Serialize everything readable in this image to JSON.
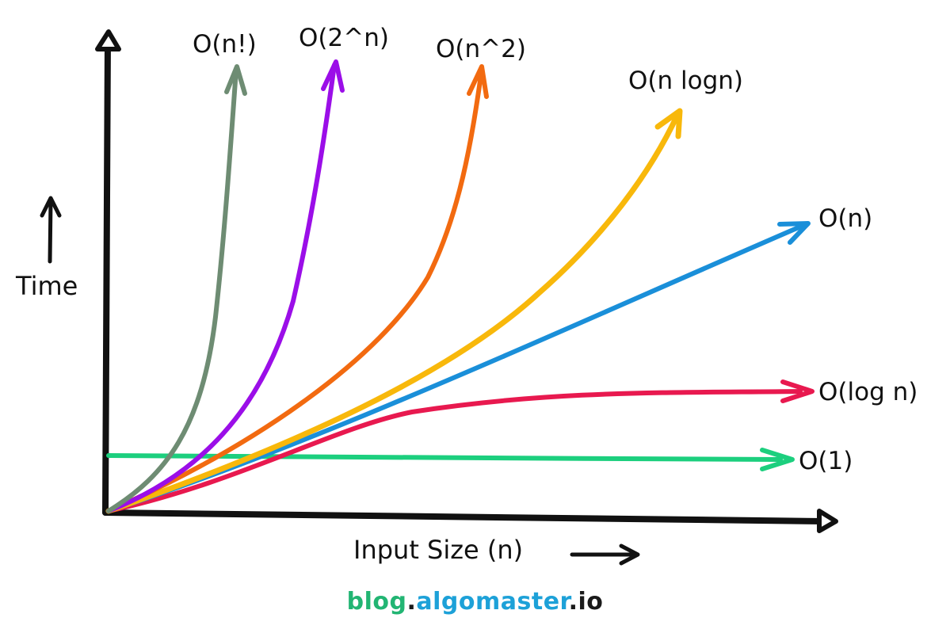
{
  "chart_data": {
    "type": "line",
    "xlabel": "Input Size (n)",
    "ylabel": "Time",
    "grid": false,
    "series": [
      {
        "name": "O(n!)",
        "color": "#6e8c73"
      },
      {
        "name": "O(2^n)",
        "color": "#9b0ee8"
      },
      {
        "name": "O(n^2)",
        "color": "#f26a10"
      },
      {
        "name": "O(n logn)",
        "color": "#f8b80b"
      },
      {
        "name": "O(n)",
        "color": "#1a8fd9"
      },
      {
        "name": "O(log n)",
        "color": "#e8194f"
      },
      {
        "name": "O(1)",
        "color": "#1ccf7e"
      }
    ]
  },
  "footer": {
    "blog": "blog",
    "dot1": ".",
    "name": "algomaster",
    "dot2": ".",
    "tld": "io"
  }
}
